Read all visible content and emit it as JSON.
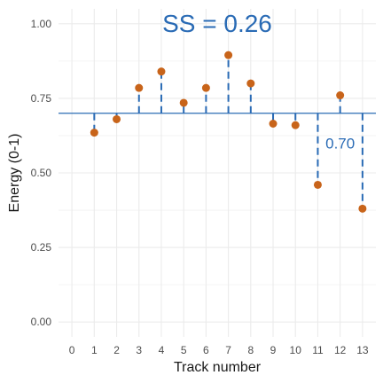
{
  "chart_data": {
    "type": "scatter",
    "title": "",
    "xlabel": "Track number",
    "ylabel": "Energy (0-1)",
    "xlim": [
      -0.6,
      13.6
    ],
    "ylim": [
      -0.05,
      1.05
    ],
    "x_ticks": [
      0,
      1,
      2,
      3,
      4,
      5,
      6,
      7,
      8,
      9,
      10,
      11,
      12,
      13
    ],
    "y_ticks": [
      0.0,
      0.25,
      0.5,
      0.75,
      1.0
    ],
    "y_tick_labels": [
      "0.00",
      "0.25",
      "0.50",
      "0.75",
      "1.00"
    ],
    "grid": true,
    "reference_line": {
      "y": 0.7,
      "color": "#2a6bb5"
    },
    "series": [
      {
        "x": [
          1,
          2,
          3,
          4,
          5,
          6,
          7,
          8,
          9,
          10,
          11,
          12,
          13
        ],
        "y": [
          0.635,
          0.68,
          0.785,
          0.84,
          0.735,
          0.785,
          0.895,
          0.8,
          0.665,
          0.66,
          0.46,
          0.76,
          0.38
        ],
        "point_color": "#c8641a",
        "segment_color": "#2a6bb5"
      }
    ],
    "annotations": [
      {
        "text": "SS = 0.26",
        "x": 6.5,
        "y": 1.0
      },
      {
        "text": "0.70",
        "x": 12.0,
        "y": 0.6
      }
    ],
    "colors": {
      "grid": "#ebebeb",
      "points": "#c8641a",
      "segments": "#2a6bb5",
      "annotation": "#2a6bb5"
    }
  }
}
